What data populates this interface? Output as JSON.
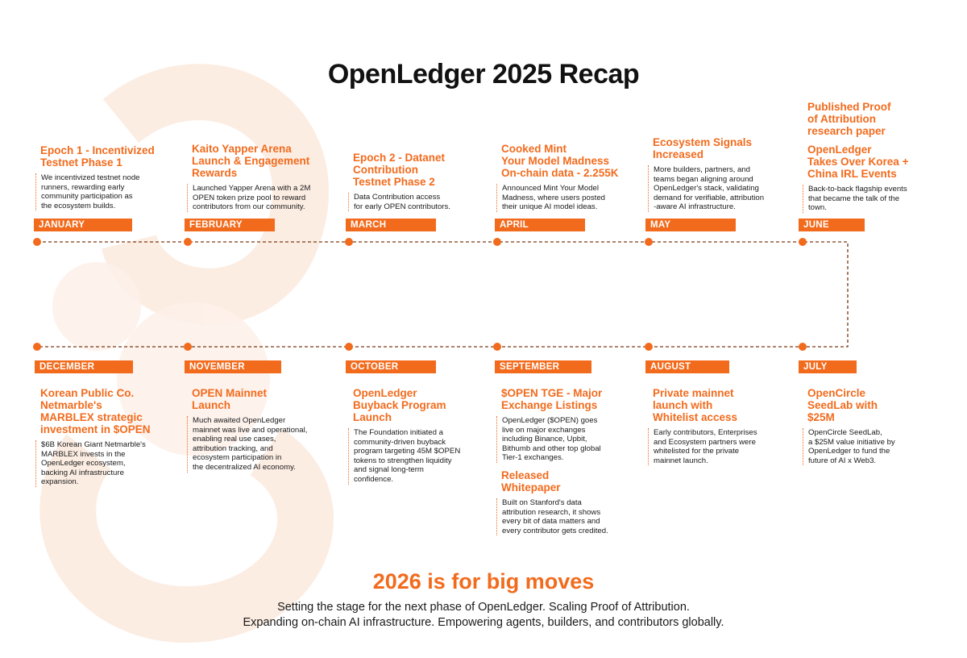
{
  "title": "OpenLedger 2025 Recap",
  "colors": {
    "accent": "#f26b1d",
    "text": "#111111"
  },
  "top_row": [
    {
      "month": "JANUARY",
      "head": [
        "Epoch 1 - Incentivized",
        "Testnet Phase 1"
      ],
      "body": [
        "We incentivized testnet node",
        "runners, rewarding early",
        "community participation as",
        "the ecosystem builds."
      ]
    },
    {
      "month": "FEBRUARY",
      "head": [
        "Kaito Yapper Arena",
        "Launch & Engagement",
        "Rewards"
      ],
      "body": [
        "Launched Yapper Arena with a 2M",
        "OPEN token prize pool to reward",
        "contributors from our community."
      ]
    },
    {
      "month": "MARCH",
      "head": [
        "Epoch 2 - Datanet",
        "Contribution",
        "Testnet Phase 2"
      ],
      "body": [
        "Data Contribution access",
        "for early OPEN contributors."
      ]
    },
    {
      "month": "APRIL",
      "head": [
        "Cooked Mint",
        "Your Model Madness",
        "On-chain data - 2.255K"
      ],
      "body": [
        "Announced Mint Your Model",
        "Madness, where users posted",
        "their unique AI model ideas."
      ]
    },
    {
      "month": "MAY",
      "head": [
        "Ecosystem Signals",
        "Increased"
      ],
      "body": [
        "More builders, partners, and",
        "teams began aligning around",
        "OpenLedger's stack, validating",
        "demand for verifiable, attribution",
        "-aware AI infrastructure."
      ]
    },
    {
      "month": "JUNE",
      "head": [
        "Published Proof",
        "of Attribution",
        "research paper"
      ],
      "head2": [
        "OpenLedger",
        "Takes Over Korea +",
        "China IRL Events"
      ],
      "body": [
        "Back-to-back flagship events",
        "that became the talk of the",
        "town."
      ]
    }
  ],
  "bottom_row": [
    {
      "month": "DECEMBER",
      "head": [
        "Korean Public Co.",
        "Netmarble's",
        "MARBLEX strategic",
        "investment in $OPEN"
      ],
      "body": [
        "$6B Korean Giant Netmarble's",
        "MARBLEX invests in the",
        "OpenLedger ecosystem,",
        "backing AI infrastructure",
        "expansion."
      ]
    },
    {
      "month": "NOVEMBER",
      "head": [
        "OPEN Mainnet",
        "Launch"
      ],
      "body": [
        "Much awaited OpenLedger",
        "mainnet was live and operational,",
        "enabling real use cases,",
        "attribution tracking, and",
        "ecosystem participation in",
        "the decentralized AI economy."
      ]
    },
    {
      "month": "OCTOBER",
      "head": [
        "OpenLedger",
        "Buyback Program",
        "Launch"
      ],
      "body": [
        "The Foundation initiated a",
        "community-driven buyback",
        "program targeting 45M $OPEN",
        "tokens to strengthen liquidity",
        "and signal long-term",
        "confidence."
      ]
    },
    {
      "month": "SEPTEMBER",
      "head": [
        "$OPEN TGE - Major",
        "Exchange Listings"
      ],
      "body": [
        "OpenLedger ($OPEN) goes",
        "live on major exchanges",
        "including Binance, Upbit,",
        "Bithumb and other top global",
        "Tier-1 exchanges."
      ],
      "head2": [
        "Released",
        "Whitepaper"
      ],
      "body2": [
        "Built on Stanford's data",
        "attribution research, it shows",
        "every bit of data matters and",
        "every contributor gets credited."
      ]
    },
    {
      "month": "AUGUST",
      "head": [
        "Private mainnet",
        "launch with",
        "Whitelist access"
      ],
      "body": [
        "Early contributors, Enterprises",
        "and Ecosystem partners were",
        "whitelisted for the private",
        "mainnet launch."
      ]
    },
    {
      "month": "JULY",
      "head": [
        "OpenCircle",
        "SeedLab with",
        "$25M"
      ],
      "body": [
        "OpenCircle SeedLab,",
        "a $25M value initiative by",
        "OpenLedger to fund the",
        "future of AI x Web3."
      ]
    }
  ],
  "footer": {
    "title": "2026 is for big moves",
    "lines": [
      "Setting the stage for the next phase of OpenLedger. Scaling Proof of Attribution.",
      "Expanding on-chain AI infrastructure. Empowering agents, builders, and contributors globally."
    ]
  }
}
